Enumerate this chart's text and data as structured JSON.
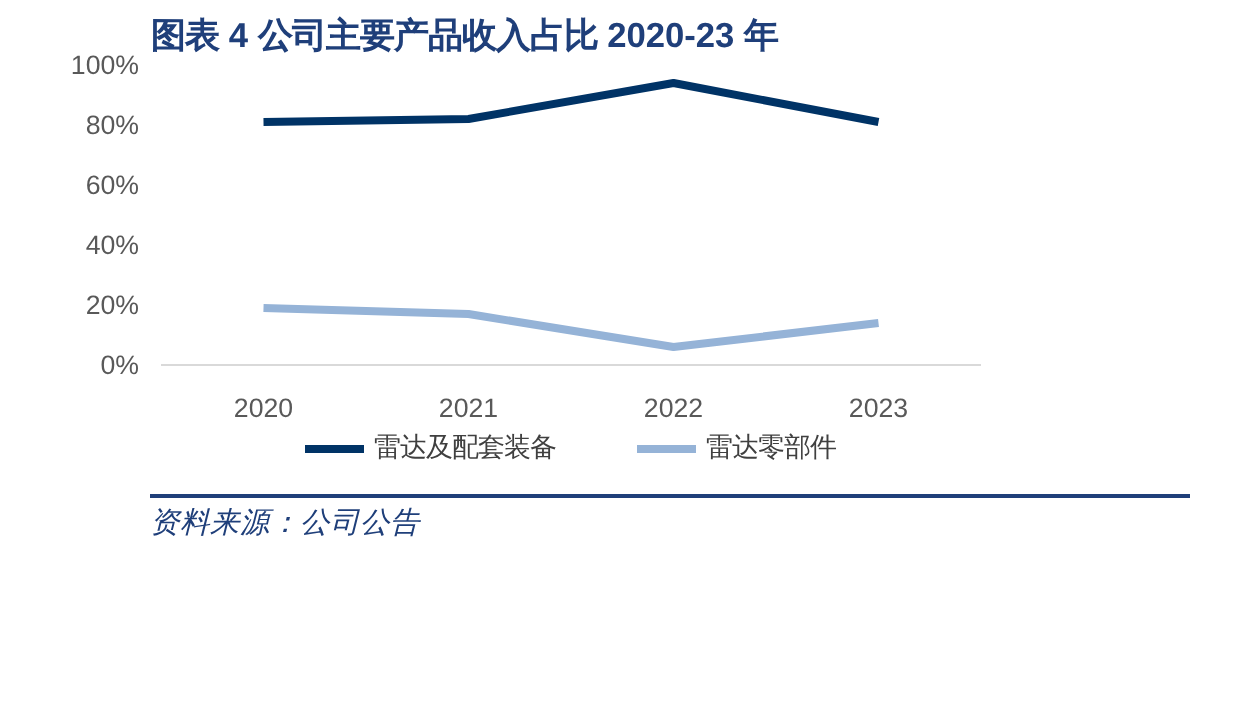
{
  "chart_data": {
    "type": "line",
    "title": "图表 4   公司主要产品收入占比 2020-23 年",
    "categories": [
      "2020",
      "2021",
      "2022",
      "2023"
    ],
    "series": [
      {
        "name": "雷达及配套装备",
        "color": "#003366",
        "values": [
          81,
          82,
          94,
          81
        ]
      },
      {
        "name": "雷达零部件",
        "color": "#95b3d7",
        "values": [
          19,
          17,
          6,
          14
        ]
      }
    ],
    "ylim": [
      0,
      100
    ],
    "yticks": [
      {
        "value": 0,
        "label": "0%"
      },
      {
        "value": 20,
        "label": "20%"
      },
      {
        "value": 40,
        "label": "40%"
      },
      {
        "value": 60,
        "label": "60%"
      },
      {
        "value": 80,
        "label": "80%"
      },
      {
        "value": 100,
        "label": "100%"
      }
    ],
    "legend": "bottom",
    "annotations": [
      "资料来源：公司公告"
    ]
  }
}
